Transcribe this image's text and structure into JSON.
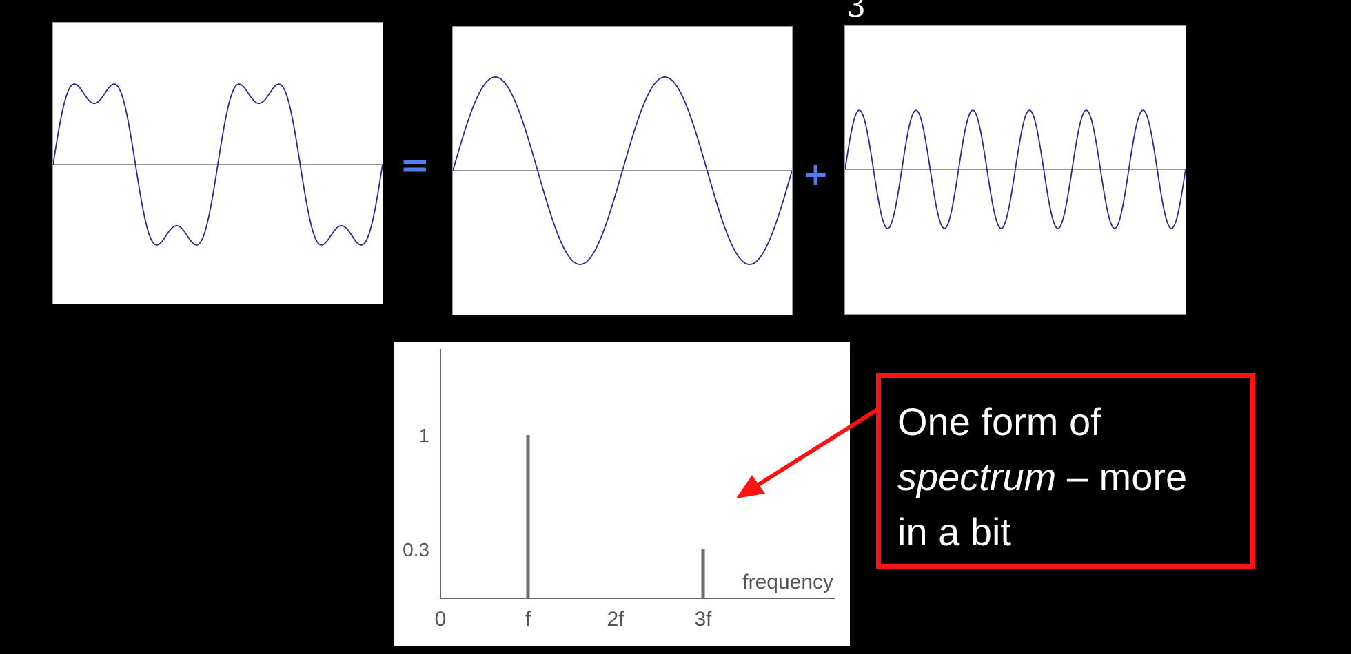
{
  "colors": {
    "background": "#000000",
    "wave": "#2b2b8f",
    "axis": "#777777",
    "operator": "#4f7df5",
    "callout_border": "#ff1212",
    "callout_text": "#ffffff",
    "spectrum_bar": "#6e6e6e"
  },
  "waveform_sum": {
    "components": [
      {
        "cycles": 2,
        "amplitude": 1
      },
      {
        "cycles": 6,
        "amplitude": 0.3
      }
    ]
  },
  "waveform_fundamental": {
    "components": [
      {
        "cycles": 2,
        "amplitude": 1
      }
    ]
  },
  "waveform_third": {
    "components": [
      {
        "cycles": 6,
        "amplitude": 0.3
      }
    ]
  },
  "operators": {
    "equals": "=",
    "plus": "+"
  },
  "stray_label": "3",
  "spectrum": {
    "bars": [
      {
        "label": "f",
        "x": 1,
        "y": 1
      },
      {
        "label": "3f",
        "x": 3,
        "y": 0.3
      }
    ],
    "x_ticks": [
      "0",
      "f",
      "2f",
      "3f"
    ],
    "y_ticks": [
      "1",
      "0.3"
    ],
    "x_axis_label": "frequency"
  },
  "callout": {
    "line1": "One form of",
    "emphasis": "spectrum",
    "line2_rest": " – more",
    "line3": "in a bit"
  }
}
